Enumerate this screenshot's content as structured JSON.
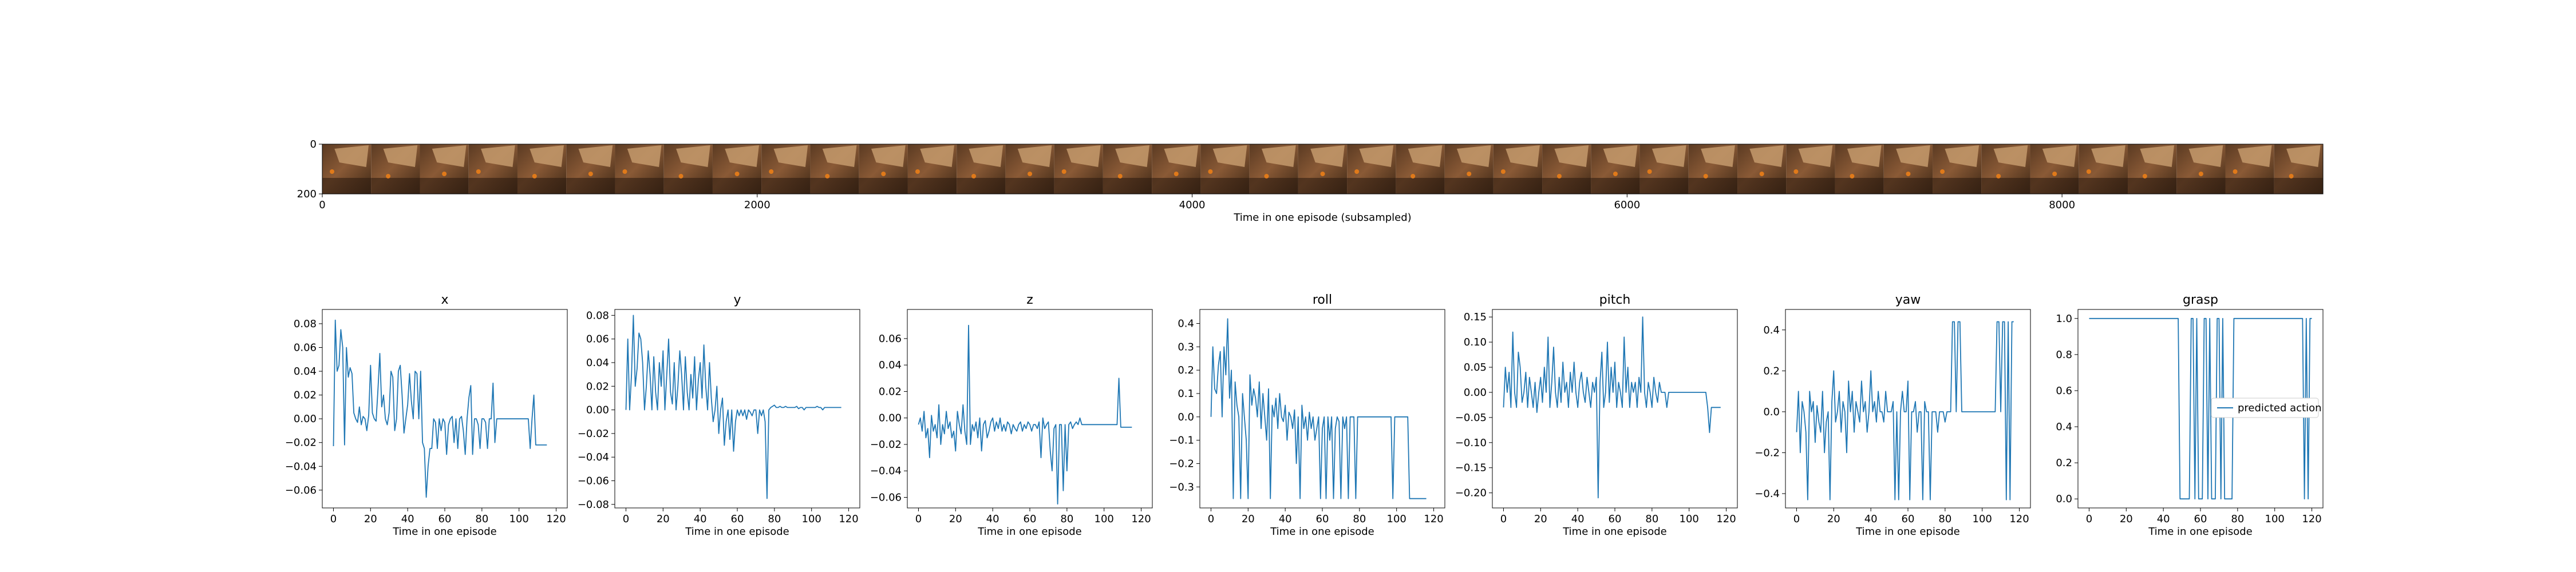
{
  "filmstrip": {
    "xlabel": "Time in one episode (subsampled)",
    "xticks": [
      0,
      2000,
      4000,
      6000,
      8000
    ],
    "yticks": [
      0,
      200
    ],
    "xlim": [
      0,
      9200
    ],
    "ylim": [
      0,
      200
    ],
    "frame_count": 41
  },
  "chart_data": [
    {
      "type": "line",
      "title": "x",
      "xlabel": "Time in one episode",
      "xlim": [
        -6,
        126
      ],
      "ylim": [
        -0.075,
        0.092
      ],
      "xticks": [
        0,
        20,
        40,
        60,
        80,
        100,
        120
      ],
      "yticks": [
        0.08,
        0.06,
        0.04,
        0.02,
        0.0,
        -0.02,
        -0.04,
        -0.06
      ],
      "ytick_labels": [
        "0.08",
        "0.06",
        "0.04",
        "0.02",
        "0.00",
        "−0.02",
        "−0.04",
        "−0.06"
      ],
      "series": [
        {
          "name": "predicted action",
          "values": [
            -0.023,
            0.083,
            0.04,
            0.045,
            0.075,
            0.06,
            -0.022,
            0.06,
            0.035,
            0.043,
            0.038,
            0.005,
            0.0,
            -0.003,
            0.01,
            -0.005,
            0.002,
            0.0,
            -0.01,
            0.003,
            0.045,
            0.005,
            0.0,
            -0.002,
            0.025,
            0.055,
            0.01,
            0.02,
            0.0,
            -0.005,
            0.005,
            0.04,
            0.035,
            -0.01,
            0.0,
            0.04,
            0.045,
            0.02,
            -0.012,
            0.0,
            0.012,
            0.038,
            0.015,
            0.0,
            0.04,
            0.038,
            0.0,
            0.04,
            -0.02,
            -0.025,
            -0.066,
            -0.04,
            -0.025,
            -0.025,
            0.0,
            -0.003,
            -0.025,
            0.0,
            -0.01,
            0.0,
            -0.003,
            -0.03,
            -0.005,
            0.0,
            0.002,
            -0.02,
            0.0,
            -0.025,
            0.0,
            0.002,
            -0.01,
            -0.03,
            0.0,
            0.018,
            0.028,
            -0.03,
            0.0,
            0.0,
            -0.005,
            -0.025,
            0.0,
            0.0,
            -0.003,
            -0.025,
            0.0,
            0.0,
            0.03,
            -0.02,
            0.0,
            0.0,
            0.0,
            0.0,
            0.0,
            0.0,
            0.0,
            0.0,
            0.0,
            0.0,
            0.0,
            0.0,
            0.0,
            0.0,
            0.0,
            0.0,
            0.0,
            0.0,
            -0.025,
            0.0,
            0.02,
            -0.022,
            -0.022,
            -0.022,
            -0.022,
            -0.022,
            -0.022,
            -0.022
          ]
        }
      ]
    },
    {
      "type": "line",
      "title": "y",
      "xlabel": "Time in one episode",
      "xlim": [
        -6,
        126
      ],
      "ylim": [
        -0.083,
        0.085
      ],
      "xticks": [
        0,
        20,
        40,
        60,
        80,
        100,
        120
      ],
      "yticks": [
        0.08,
        0.06,
        0.04,
        0.02,
        0.0,
        -0.02,
        -0.04,
        -0.06,
        -0.08
      ],
      "ytick_labels": [
        "0.08",
        "0.06",
        "0.04",
        "0.02",
        "0.00",
        "−0.02",
        "−0.04",
        "−0.06",
        "−0.08"
      ],
      "series": [
        {
          "name": "predicted action",
          "values": [
            0.0,
            0.06,
            0.0,
            0.03,
            0.08,
            0.02,
            0.035,
            0.065,
            0.06,
            0.04,
            0.0,
            0.02,
            0.05,
            0.03,
            0.0,
            0.045,
            0.015,
            0.0,
            0.04,
            0.02,
            0.05,
            0.0,
            0.03,
            0.06,
            0.015,
            0.005,
            0.04,
            0.0,
            0.02,
            0.05,
            0.03,
            0.0,
            0.045,
            0.015,
            0.0,
            0.03,
            0.01,
            0.045,
            0.0,
            0.025,
            0.04,
            0.01,
            0.055,
            0.02,
            0.0,
            0.04,
            0.01,
            -0.01,
            0.0,
            0.02,
            -0.02,
            0.0,
            0.01,
            -0.03,
            -0.01,
            0.0,
            -0.025,
            0.0,
            -0.035,
            -0.01,
            0.0,
            -0.005,
            0.0,
            -0.005,
            0.0,
            -0.008,
            0.0,
            -0.002,
            -0.005,
            0.0,
            0.0,
            -0.02,
            0.0,
            -0.005,
            0.0,
            -0.01,
            -0.075,
            0.0,
            0.002,
            0.003,
            0.004,
            0.002,
            0.002,
            0.003,
            0.002,
            0.002,
            0.003,
            0.002,
            0.002,
            0.002,
            0.002,
            0.002,
            0.003,
            0.001,
            0.002,
            0.002,
            0.0,
            0.002,
            0.002,
            0.002,
            0.002,
            0.002,
            0.002,
            0.003,
            0.002,
            0.002,
            0.0,
            0.002,
            0.002,
            0.002,
            0.002,
            0.002,
            0.002,
            0.002,
            0.002,
            0.002,
            0.002
          ]
        }
      ]
    },
    {
      "type": "line",
      "title": "z",
      "xlabel": "Time in one episode",
      "xlim": [
        -6,
        126
      ],
      "ylim": [
        -0.068,
        0.082
      ],
      "xticks": [
        0,
        20,
        40,
        60,
        80,
        100,
        120
      ],
      "yticks": [
        0.06,
        0.04,
        0.02,
        0.0,
        -0.02,
        -0.04,
        -0.06
      ],
      "ytick_labels": [
        "0.06",
        "0.04",
        "0.02",
        "0.00",
        "−0.02",
        "−0.04",
        "−0.06"
      ],
      "series": [
        {
          "name": "predicted action",
          "values": [
            -0.005,
            0.0,
            -0.01,
            0.005,
            -0.015,
            -0.008,
            -0.03,
            0.002,
            -0.01,
            -0.005,
            -0.015,
            0.01,
            -0.02,
            -0.005,
            -0.012,
            0.005,
            -0.008,
            -0.003,
            -0.015,
            -0.01,
            -0.025,
            0.005,
            -0.005,
            -0.012,
            0.01,
            -0.01,
            -0.02,
            0.07,
            -0.02,
            -0.005,
            -0.01,
            -0.003,
            -0.015,
            0.0,
            -0.025,
            -0.005,
            -0.002,
            -0.015,
            -0.01,
            -0.003,
            0.0,
            -0.01,
            -0.003,
            -0.008,
            0.0,
            -0.01,
            -0.005,
            -0.01,
            -0.003,
            -0.005,
            -0.012,
            -0.005,
            -0.008,
            -0.01,
            -0.005,
            -0.003,
            -0.01,
            -0.005,
            -0.008,
            -0.003,
            -0.005,
            -0.01,
            -0.005,
            -0.005,
            -0.008,
            -0.003,
            -0.03,
            0.0,
            -0.008,
            -0.005,
            -0.003,
            -0.025,
            -0.04,
            -0.008,
            -0.005,
            -0.065,
            -0.005,
            -0.005,
            -0.055,
            -0.005,
            -0.04,
            -0.005,
            -0.003,
            -0.008,
            -0.005,
            -0.003,
            -0.005,
            0.0,
            -0.005,
            -0.005,
            -0.005,
            -0.005,
            -0.005,
            -0.005,
            -0.005,
            -0.005,
            -0.005,
            -0.005,
            -0.005,
            -0.005,
            -0.005,
            -0.005,
            -0.005,
            -0.005,
            -0.005,
            -0.005,
            -0.005,
            -0.005,
            0.03,
            -0.007,
            -0.007,
            -0.007,
            -0.007,
            -0.007,
            -0.007,
            -0.007
          ]
        }
      ]
    },
    {
      "type": "line",
      "title": "roll",
      "xlabel": "Time in one episode",
      "xlim": [
        -6,
        126
      ],
      "ylim": [
        -0.39,
        0.46
      ],
      "xticks": [
        0,
        20,
        40,
        60,
        80,
        100,
        120
      ],
      "yticks": [
        0.4,
        0.3,
        0.2,
        0.1,
        0.0,
        -0.1,
        -0.2,
        -0.3
      ],
      "ytick_labels": [
        "0.4",
        "0.3",
        "0.2",
        "0.1",
        "0.0",
        "−0.1",
        "−0.2",
        "−0.3"
      ],
      "series": [
        {
          "name": "predicted action",
          "values": [
            0.0,
            0.3,
            0.12,
            0.1,
            0.22,
            0.28,
            0.0,
            0.3,
            0.18,
            0.42,
            0.08,
            0.2,
            -0.35,
            0.15,
            0.05,
            0.0,
            -0.35,
            0.1,
            0.0,
            -0.1,
            -0.35,
            0.18,
            0.05,
            0.12,
            0.08,
            0.0,
            0.15,
            -0.05,
            0.1,
            0.0,
            -0.1,
            0.12,
            -0.35,
            0.05,
            0.0,
            0.08,
            -0.05,
            0.1,
            0.0,
            -0.02,
            0.05,
            -0.1,
            0.02,
            0.0,
            -0.05,
            0.03,
            -0.2,
            0.0,
            -0.35,
            0.05,
            -0.05,
            0.0,
            -0.1,
            0.02,
            -0.05,
            0.0,
            -0.1,
            -0.05,
            0.0,
            -0.35,
            -0.05,
            0.0,
            -0.35,
            0.0,
            -0.1,
            0.0,
            -0.35,
            -0.05,
            0.0,
            -0.02,
            -0.35,
            0.0,
            -0.05,
            0.0,
            -0.35,
            0.0,
            0.0,
            0.0,
            -0.35,
            0.0,
            0.0,
            0.0,
            0.0,
            0.0,
            0.0,
            0.0,
            0.0,
            0.0,
            0.0,
            0.0,
            0.0,
            0.0,
            0.0,
            0.0,
            0.0,
            0.0,
            0.0,
            0.0,
            -0.35,
            0.0,
            0.0,
            0.0,
            0.0,
            0.0,
            0.0,
            0.0,
            0.0,
            -0.35,
            -0.35,
            -0.35,
            -0.35,
            -0.35,
            -0.35,
            -0.35,
            -0.35,
            -0.35,
            -0.35
          ]
        }
      ]
    },
    {
      "type": "line",
      "title": "pitch",
      "xlabel": "Time in one episode",
      "xlim": [
        -6,
        126
      ],
      "ylim": [
        -0.23,
        0.165
      ],
      "xticks": [
        0,
        20,
        40,
        60,
        80,
        100,
        120
      ],
      "yticks": [
        0.15,
        0.1,
        0.05,
        0.0,
        -0.05,
        -0.1,
        -0.15,
        -0.2
      ],
      "ytick_labels": [
        "0.15",
        "0.10",
        "0.05",
        "0.00",
        "−0.05",
        "−0.10",
        "−0.15",
        "−0.20"
      ],
      "series": [
        {
          "name": "predicted action",
          "values": [
            -0.03,
            0.05,
            0.0,
            0.04,
            -0.03,
            0.12,
            0.0,
            -0.03,
            0.08,
            0.05,
            -0.02,
            0.0,
            0.04,
            -0.03,
            0.03,
            0.0,
            -0.03,
            0.02,
            -0.04,
            0.0,
            0.03,
            -0.02,
            0.05,
            0.0,
            0.11,
            -0.03,
            0.02,
            0.09,
            0.0,
            -0.03,
            0.03,
            -0.02,
            0.06,
            0.0,
            0.02,
            -0.03,
            0.04,
            0.0,
            0.06,
            0.0,
            -0.03,
            0.02,
            0.04,
            0.0,
            -0.02,
            0.03,
            0.0,
            -0.03,
            0.02,
            0.0,
            0.03,
            -0.21,
            0.02,
            0.08,
            -0.03,
            0.0,
            0.1,
            -0.02,
            0.05,
            0.0,
            0.06,
            -0.03,
            0.02,
            0.0,
            -0.03,
            0.11,
            0.0,
            0.05,
            -0.03,
            0.02,
            0.0,
            0.02,
            -0.03,
            0.03,
            0.0,
            0.15,
            0.0,
            -0.03,
            0.02,
            0.0,
            -0.03,
            0.03,
            0.0,
            -0.02,
            0.02,
            0.0,
            0.0,
            0.0,
            -0.03,
            0.0,
            0.0,
            0.0,
            0.0,
            0.0,
            0.0,
            0.0,
            0.0,
            0.0,
            0.0,
            0.0,
            0.0,
            0.0,
            0.0,
            0.0,
            0.0,
            0.0,
            0.0,
            0.0,
            0.0,
            0.0,
            -0.03,
            -0.08,
            -0.03,
            -0.03,
            -0.03,
            -0.03,
            -0.03,
            -0.03
          ]
        }
      ]
    },
    {
      "type": "line",
      "title": "yaw",
      "xlabel": "Time in one episode",
      "xlim": [
        -6,
        126
      ],
      "ylim": [
        -0.47,
        0.5
      ],
      "xticks": [
        0,
        20,
        40,
        60,
        80,
        100,
        120
      ],
      "yticks": [
        0.4,
        0.2,
        0.0,
        -0.2,
        -0.4
      ],
      "ytick_labels": [
        "0.4",
        "0.2",
        "0.0",
        "−0.2",
        "−0.4"
      ],
      "series": [
        {
          "name": "predicted action",
          "values": [
            -0.1,
            0.1,
            -0.2,
            0.05,
            0.0,
            -0.1,
            -0.43,
            0.1,
            0.0,
            0.05,
            -0.15,
            0.03,
            -0.05,
            -0.1,
            0.1,
            -0.2,
            -0.05,
            0.0,
            -0.43,
            0.05,
            0.2,
            -0.05,
            0.0,
            0.1,
            -0.1,
            0.05,
            0.0,
            -0.2,
            0.15,
            0.0,
            0.1,
            -0.1,
            0.05,
            0.0,
            -0.05,
            0.15,
            0.0,
            0.05,
            -0.1,
            0.0,
            0.2,
            0.0,
            0.05,
            -0.05,
            0.1,
            0.0,
            0.0,
            -0.05,
            0.1,
            0.0,
            0.0,
            0.0,
            0.05,
            -0.43,
            0.0,
            -0.43,
            0.0,
            0.1,
            0.0,
            0.0,
            0.15,
            -0.43,
            0.0,
            0.0,
            0.05,
            -0.1,
            0.0,
            0.0,
            -0.43,
            0.05,
            0.0,
            0.0,
            -0.43,
            0.0,
            0.0,
            0.0,
            -0.1,
            0.0,
            0.0,
            0.0,
            -0.05,
            0.0,
            0.0,
            0.0,
            0.44,
            0.44,
            0.0,
            0.44,
            0.44,
            0.0,
            0.0,
            0.0,
            0.0,
            0.0,
            0.0,
            0.0,
            0.0,
            0.0,
            0.0,
            0.0,
            0.0,
            0.0,
            0.0,
            0.0,
            0.0,
            0.0,
            0.0,
            0.0,
            0.44,
            0.44,
            0.0,
            0.44,
            0.44,
            -0.43,
            0.44,
            -0.43,
            0.44,
            0.44
          ]
        }
      ]
    },
    {
      "type": "line",
      "title": "grasp",
      "xlabel": "Time in one episode",
      "xlim": [
        -6,
        126
      ],
      "ylim": [
        -0.05,
        1.05
      ],
      "xticks": [
        0,
        20,
        40,
        60,
        80,
        100,
        120
      ],
      "yticks": [
        1.0,
        0.8,
        0.6,
        0.4,
        0.2,
        0.0
      ],
      "ytick_labels": [
        "1.0",
        "0.8",
        "0.6",
        "0.4",
        "0.2",
        "0.0"
      ],
      "legend": {
        "label": "predicted action",
        "loc": "center-right"
      },
      "series": [
        {
          "name": "predicted action",
          "values": [
            1,
            1,
            1,
            1,
            1,
            1,
            1,
            1,
            1,
            1,
            1,
            1,
            1,
            1,
            1,
            1,
            1,
            1,
            1,
            1,
            1,
            1,
            1,
            1,
            1,
            1,
            1,
            1,
            1,
            1,
            1,
            1,
            1,
            1,
            1,
            1,
            1,
            1,
            1,
            1,
            1,
            1,
            1,
            1,
            1,
            1,
            1,
            1,
            1,
            0,
            0,
            0,
            0,
            0,
            0,
            1,
            1,
            0,
            1,
            0,
            0,
            0,
            1,
            1,
            0,
            1,
            0,
            0,
            0,
            1,
            1,
            0,
            1,
            0,
            0,
            0,
            0,
            0,
            1,
            1,
            1,
            1,
            1,
            1,
            1,
            1,
            1,
            1,
            1,
            1,
            1,
            1,
            1,
            1,
            1,
            1,
            1,
            1,
            1,
            1,
            1,
            1,
            1,
            1,
            1,
            1,
            1,
            1,
            1,
            1,
            1,
            1,
            1,
            1,
            1,
            1,
            0,
            1,
            0,
            1,
            1
          ]
        }
      ]
    }
  ]
}
